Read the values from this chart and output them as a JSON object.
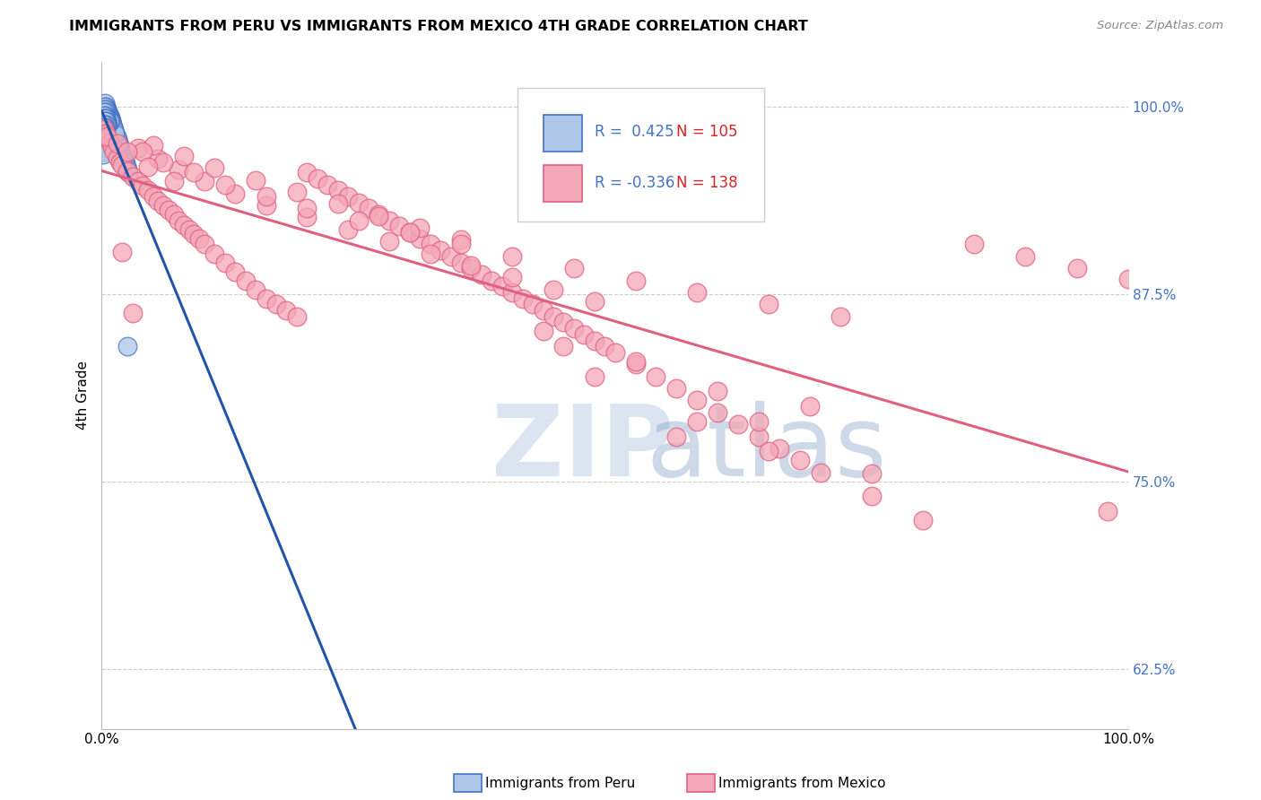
{
  "title": "IMMIGRANTS FROM PERU VS IMMIGRANTS FROM MEXICO 4TH GRADE CORRELATION CHART",
  "source": "Source: ZipAtlas.com",
  "ylabel": "4th Grade",
  "ytick_labels": [
    "62.5%",
    "75.0%",
    "87.5%",
    "100.0%"
  ],
  "ytick_values": [
    0.625,
    0.75,
    0.875,
    1.0
  ],
  "xlim": [
    0.0,
    1.0
  ],
  "ylim": [
    0.585,
    1.03
  ],
  "legend_peru_r": "0.425",
  "legend_peru_n": "105",
  "legend_mexico_r": "-0.336",
  "legend_mexico_n": "138",
  "color_peru_fill": "#aec6e8",
  "color_peru_edge": "#4472c4",
  "color_peru_line": "#2255aa",
  "color_mexico_fill": "#f4a7b8",
  "color_mexico_edge": "#e06080",
  "color_mexico_line": "#e06080",
  "color_r_value": "#4472c4",
  "color_n_value": "#dd2222",
  "watermark_zip_color": "#c0cfe8",
  "watermark_atlas_color": "#90aacc",
  "grid_color": "#cccccc",
  "peru_x": [
    0.001,
    0.002,
    0.002,
    0.003,
    0.003,
    0.003,
    0.004,
    0.004,
    0.004,
    0.005,
    0.005,
    0.005,
    0.005,
    0.006,
    0.006,
    0.006,
    0.006,
    0.007,
    0.007,
    0.007,
    0.007,
    0.008,
    0.008,
    0.008,
    0.008,
    0.009,
    0.009,
    0.009,
    0.01,
    0.01,
    0.01,
    0.011,
    0.011,
    0.011,
    0.012,
    0.012,
    0.012,
    0.013,
    0.013,
    0.014,
    0.014,
    0.015,
    0.015,
    0.016,
    0.016,
    0.017,
    0.018,
    0.019,
    0.02,
    0.021,
    0.022,
    0.023,
    0.024,
    0.025,
    0.026,
    0.003,
    0.004,
    0.005,
    0.006,
    0.007,
    0.008,
    0.009,
    0.01,
    0.011,
    0.012,
    0.013,
    0.003,
    0.004,
    0.005,
    0.006,
    0.007,
    0.008,
    0.003,
    0.004,
    0.005,
    0.006,
    0.007,
    0.002,
    0.003,
    0.004,
    0.005,
    0.006,
    0.002,
    0.003,
    0.004,
    0.005,
    0.003,
    0.004,
    0.005,
    0.003,
    0.004,
    0.002,
    0.003,
    0.002,
    0.003,
    0.001,
    0.002,
    0.002,
    0.001,
    0.001,
    0.001,
    0.001,
    0.001,
    0.001,
    0.025
  ],
  "peru_y": [
    0.99,
    0.995,
    0.985,
    0.992,
    0.988,
    0.982,
    0.994,
    0.99,
    0.986,
    0.998,
    0.994,
    0.99,
    0.986,
    0.996,
    0.992,
    0.988,
    0.984,
    0.994,
    0.99,
    0.986,
    0.982,
    0.992,
    0.988,
    0.984,
    0.98,
    0.99,
    0.986,
    0.982,
    0.988,
    0.984,
    0.98,
    0.986,
    0.982,
    0.978,
    0.984,
    0.98,
    0.976,
    0.982,
    0.978,
    0.98,
    0.976,
    0.978,
    0.974,
    0.976,
    0.972,
    0.974,
    0.972,
    0.97,
    0.968,
    0.966,
    0.964,
    0.962,
    0.96,
    0.958,
    0.956,
    1.002,
    1.0,
    0.998,
    0.996,
    0.994,
    0.992,
    0.99,
    0.988,
    0.986,
    0.984,
    0.982,
    1.0,
    0.998,
    0.996,
    0.994,
    0.992,
    0.99,
    0.998,
    0.996,
    0.994,
    0.992,
    0.99,
    0.996,
    0.994,
    0.992,
    0.99,
    0.988,
    0.994,
    0.992,
    0.99,
    0.988,
    0.992,
    0.99,
    0.988,
    0.99,
    0.988,
    0.988,
    0.986,
    0.986,
    0.984,
    0.984,
    0.982,
    0.98,
    0.978,
    0.976,
    0.974,
    0.972,
    0.97,
    0.968,
    0.84
  ],
  "mexico_x": [
    0.002,
    0.004,
    0.006,
    0.008,
    0.01,
    0.012,
    0.015,
    0.018,
    0.02,
    0.025,
    0.03,
    0.035,
    0.04,
    0.045,
    0.05,
    0.055,
    0.06,
    0.065,
    0.07,
    0.075,
    0.08,
    0.085,
    0.09,
    0.095,
    0.1,
    0.11,
    0.12,
    0.13,
    0.14,
    0.15,
    0.16,
    0.17,
    0.18,
    0.19,
    0.2,
    0.21,
    0.22,
    0.23,
    0.24,
    0.25,
    0.26,
    0.27,
    0.28,
    0.29,
    0.3,
    0.31,
    0.32,
    0.33,
    0.34,
    0.35,
    0.36,
    0.37,
    0.38,
    0.39,
    0.4,
    0.41,
    0.42,
    0.43,
    0.44,
    0.45,
    0.46,
    0.47,
    0.48,
    0.49,
    0.5,
    0.52,
    0.54,
    0.56,
    0.58,
    0.6,
    0.62,
    0.64,
    0.66,
    0.68,
    0.7,
    0.75,
    0.8,
    0.85,
    0.9,
    0.95,
    1.0,
    0.035,
    0.055,
    0.075,
    0.1,
    0.13,
    0.16,
    0.2,
    0.24,
    0.28,
    0.32,
    0.36,
    0.4,
    0.44,
    0.48,
    0.03,
    0.05,
    0.08,
    0.11,
    0.15,
    0.19,
    0.23,
    0.27,
    0.31,
    0.35,
    0.02,
    0.04,
    0.06,
    0.09,
    0.12,
    0.16,
    0.2,
    0.25,
    0.3,
    0.35,
    0.4,
    0.46,
    0.52,
    0.58,
    0.65,
    0.72,
    0.005,
    0.015,
    0.025,
    0.045,
    0.07,
    0.45,
    0.6,
    0.52,
    0.69,
    0.58,
    0.43,
    0.98,
    0.75,
    0.65,
    0.48,
    0.56,
    0.64
  ],
  "mexico_y": [
    0.985,
    0.982,
    0.979,
    0.976,
    0.973,
    0.97,
    0.966,
    0.963,
    0.961,
    0.957,
    0.953,
    0.95,
    0.947,
    0.944,
    0.94,
    0.937,
    0.934,
    0.931,
    0.928,
    0.924,
    0.921,
    0.918,
    0.915,
    0.912,
    0.908,
    0.902,
    0.896,
    0.89,
    0.884,
    0.878,
    0.872,
    0.868,
    0.864,
    0.86,
    0.956,
    0.952,
    0.948,
    0.944,
    0.94,
    0.936,
    0.932,
    0.928,
    0.924,
    0.92,
    0.916,
    0.912,
    0.908,
    0.904,
    0.9,
    0.896,
    0.892,
    0.888,
    0.884,
    0.88,
    0.876,
    0.872,
    0.868,
    0.864,
    0.86,
    0.856,
    0.852,
    0.848,
    0.844,
    0.84,
    0.836,
    0.828,
    0.82,
    0.812,
    0.804,
    0.796,
    0.788,
    0.78,
    0.772,
    0.764,
    0.756,
    0.74,
    0.724,
    0.908,
    0.9,
    0.892,
    0.885,
    0.972,
    0.965,
    0.958,
    0.95,
    0.942,
    0.934,
    0.926,
    0.918,
    0.91,
    0.902,
    0.894,
    0.886,
    0.878,
    0.87,
    0.862,
    0.974,
    0.967,
    0.959,
    0.951,
    0.943,
    0.935,
    0.927,
    0.919,
    0.911,
    0.903,
    0.97,
    0.963,
    0.956,
    0.948,
    0.94,
    0.932,
    0.924,
    0.916,
    0.908,
    0.9,
    0.892,
    0.884,
    0.876,
    0.868,
    0.86,
    0.98,
    0.975,
    0.97,
    0.96,
    0.95,
    0.84,
    0.81,
    0.83,
    0.8,
    0.79,
    0.85,
    0.73,
    0.755,
    0.77,
    0.82,
    0.78,
    0.79
  ]
}
